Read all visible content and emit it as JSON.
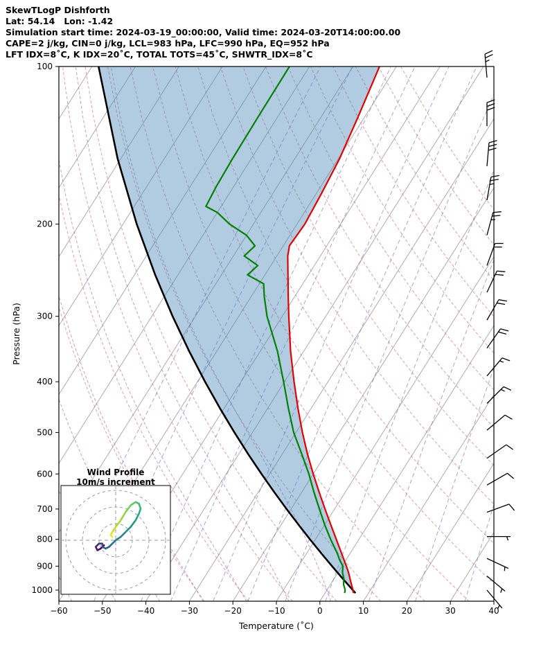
{
  "header": {
    "title": "SkewTLogP Dishforth",
    "location": "Lat: 54.14   Lon: -1.42",
    "times": "Simulation start time: 2024-03-19_00:00:00, Valid time: 2024-03-20T14:00:00.00",
    "indices1": "CAPE=2 j/kg, CIN=0 j/kg, LCL=983 hPa, LFC=990 hPa, EQ=952 hPa",
    "indices2": "LFT IDX=8˚C, K IDX=20˚C, TOTAL TOTS=45˚C, SHWTR_IDX=8˚C"
  },
  "chart_data": {
    "type": "line",
    "subtype": "skew-t-log-p",
    "title": "SkewTLogP Dishforth",
    "xlabel": "Temperature (˚C)",
    "ylabel": "Pressure (hPa)",
    "xlim": [
      -60,
      40
    ],
    "ylim": [
      1050,
      100
    ],
    "x_ticks": [
      -60,
      -50,
      -40,
      -30,
      -20,
      -10,
      0,
      10,
      20,
      30,
      40
    ],
    "y_ticks": [
      100,
      200,
      300,
      400,
      500,
      600,
      700,
      800,
      900,
      1000
    ],
    "skew_deg_per_decade": 76,
    "grid": true,
    "isotherms": {
      "min": -130,
      "max": 40,
      "step": 10
    },
    "dry_adiabats_theta_c": [
      -30,
      -20,
      -10,
      0,
      10,
      20,
      30,
      40,
      50,
      60,
      70,
      80,
      90,
      100,
      110,
      120,
      130,
      140
    ],
    "moist_adiabats_thetaw_c": [
      -70,
      -60,
      -50,
      -40,
      -30,
      -20,
      -10,
      0
    ],
    "mixing_ratio_gkg": [
      0.01,
      0.03,
      0.1,
      0.2,
      0.5,
      1,
      2,
      4,
      8,
      16,
      32
    ],
    "temperature_profile": {
      "p": [
        1013,
        1000,
        975,
        950,
        925,
        900,
        875,
        850,
        800,
        750,
        700,
        650,
        600,
        550,
        500,
        450,
        400,
        350,
        300,
        275,
        250,
        230,
        220,
        210,
        200,
        175,
        150,
        125,
        100
      ],
      "t": [
        6.5,
        6.0,
        4.8,
        3.6,
        2.4,
        1.0,
        -0.5,
        -2.0,
        -5.2,
        -8.6,
        -12.2,
        -16.0,
        -20.0,
        -24.2,
        -28.5,
        -33.0,
        -37.8,
        -43.0,
        -48.5,
        -51.5,
        -54.7,
        -57.5,
        -58.6,
        -58.4,
        -58.2,
        -58.8,
        -59.7,
        -61.5,
        -63.9
      ]
    },
    "dewpoint_profile": {
      "p": [
        1013,
        1000,
        975,
        950,
        925,
        900,
        875,
        850,
        800,
        750,
        700,
        650,
        600,
        550,
        500,
        450,
        400,
        350,
        300,
        275,
        260,
        250,
        240,
        230,
        220,
        210,
        200,
        190,
        185,
        170,
        150,
        125,
        100
      ],
      "t": [
        4.5,
        4.2,
        3.0,
        2.2,
        1.0,
        0.2,
        -1.5,
        -3.0,
        -6.5,
        -10.0,
        -13.5,
        -17.2,
        -21.0,
        -25.5,
        -30.5,
        -35.2,
        -40.2,
        -46.0,
        -53.5,
        -57.0,
        -59.0,
        -64.0,
        -63.0,
        -67.5,
        -66.5,
        -70.0,
        -75.5,
        -80.0,
        -83.5,
        -84.0,
        -84.3,
        -84.5,
        -84.6
      ]
    },
    "parcel_profile": {
      "p": [
        1013,
        1000,
        950,
        900,
        850,
        800,
        750,
        700,
        650,
        600,
        550,
        500,
        450,
        400,
        350,
        300,
        250,
        200,
        150,
        100
      ],
      "t": [
        7.0,
        5.97,
        1.91,
        -2.3,
        -6.68,
        -11.25,
        -16.03,
        -21.05,
        -26.32,
        -31.89,
        -37.82,
        -44.13,
        -50.91,
        -58.26,
        -66.29,
        -75.2,
        -85.24,
        -96.83,
        -110.73,
        -128.48
      ]
    },
    "wind_barbs": [
      {
        "p": 105,
        "speed": 27,
        "dir": 355
      },
      {
        "p": 130,
        "speed": 30,
        "dir": 0
      },
      {
        "p": 155,
        "speed": 28,
        "dir": 5
      },
      {
        "p": 180,
        "speed": 25,
        "dir": 10
      },
      {
        "p": 210,
        "speed": 25,
        "dir": 15
      },
      {
        "p": 240,
        "speed": 22,
        "dir": 20
      },
      {
        "p": 270,
        "speed": 22,
        "dir": 25
      },
      {
        "p": 305,
        "speed": 20,
        "dir": 30
      },
      {
        "p": 345,
        "speed": 18,
        "dir": 35
      },
      {
        "p": 390,
        "speed": 15,
        "dir": 40
      },
      {
        "p": 440,
        "speed": 15,
        "dir": 45
      },
      {
        "p": 495,
        "speed": 12,
        "dir": 50
      },
      {
        "p": 560,
        "speed": 12,
        "dir": 55
      },
      {
        "p": 630,
        "speed": 10,
        "dir": 60
      },
      {
        "p": 710,
        "speed": 8,
        "dir": 70
      },
      {
        "p": 790,
        "speed": 7,
        "dir": 90
      },
      {
        "p": 870,
        "speed": 6,
        "dir": 115
      },
      {
        "p": 940,
        "speed": 5,
        "dir": 130
      },
      {
        "p": 1000,
        "speed": 4,
        "dir": 140
      }
    ],
    "hodograph": {
      "title": "Wind Profile",
      "subtitle": "10m/s increment",
      "ring_interval_ms": 10,
      "rings": [
        10,
        20,
        30
      ],
      "u": [
        -7,
        -9,
        -11,
        -12,
        -10,
        -8,
        -8,
        -6,
        -4,
        -2,
        0,
        3,
        6,
        9,
        12,
        14,
        15,
        14,
        12,
        9,
        6,
        3,
        0,
        -2,
        -3,
        -2
      ],
      "v": [
        -3,
        -5,
        -6,
        -4,
        -2,
        -2,
        -4,
        -5,
        -4,
        -2,
        0,
        2,
        5,
        8,
        12,
        16,
        19,
        22,
        23,
        21,
        17,
        12,
        8,
        5,
        3,
        2
      ]
    },
    "colors": {
      "temperature": "#e00000",
      "dewpoint": "#008000",
      "parcel": "#000000",
      "cape_fill": "#4682b4",
      "cape_fill_opacity": 0.42,
      "isotherm": "#ababab",
      "dry_adiabat": "#d46a6a",
      "moist_adiabat": "#9b59b6",
      "mixing_ratio": "#5a5ad1",
      "barb": "#000000",
      "inset_grid": "#999999",
      "viridis": [
        "#440154",
        "#46327e",
        "#365c8d",
        "#277f8e",
        "#1fa187",
        "#4ac16d",
        "#a0da39",
        "#fde725"
      ]
    }
  }
}
